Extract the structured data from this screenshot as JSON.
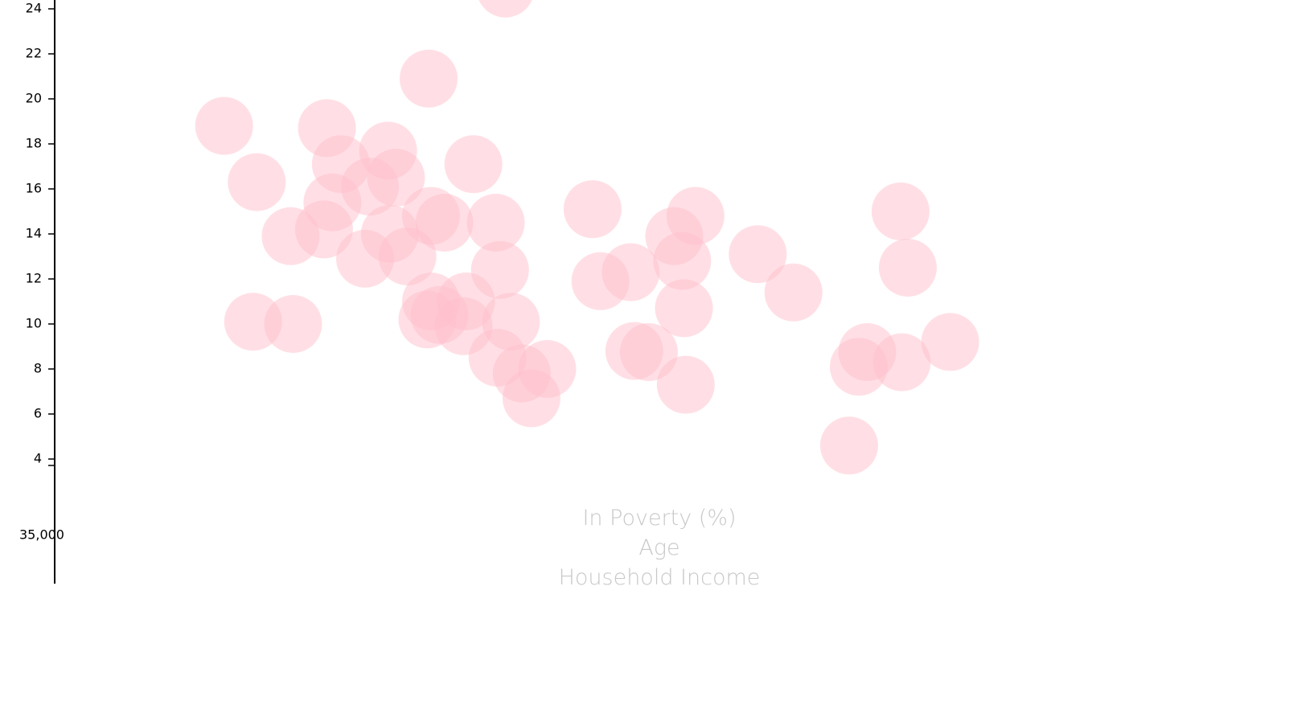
{
  "chart_data": {
    "type": "scatter",
    "color": "#ffc0cb",
    "opacity": 0.5,
    "x_axis_labels": [
      "In Poverty (%)",
      "Age",
      "Household Income"
    ],
    "ylim": [
      4,
      24
    ],
    "yticks": [
      4,
      6,
      8,
      10,
      12,
      14,
      16,
      18,
      20,
      22,
      24
    ],
    "y2ticks": [
      {
        "value": 35000,
        "label": "35,000"
      }
    ],
    "xlim": [
      6.2,
      26.6
    ],
    "x": [
      13.65,
      12.38,
      9.0,
      10.7,
      11.71,
      10.93,
      13.12,
      9.54,
      11.84,
      11.41,
      10.79,
      15.09,
      20.18,
      16.79,
      12.42,
      12.64,
      13.49,
      10.1,
      10.65,
      11.74,
      16.44,
      17.82,
      11.33,
      12.03,
      16.57,
      20.3,
      13.56,
      15.72,
      15.22,
      18.41,
      12.42,
      13.0,
      16.6,
      9.48,
      10.14,
      12.36,
      12.56,
      12.96,
      13.74,
      21.0,
      15.78,
      16.02,
      19.63,
      20.2,
      13.52,
      14.34,
      13.92,
      19.49,
      16.63,
      14.08,
      19.33
    ],
    "values": [
      24.9,
      20.9,
      18.8,
      18.7,
      17.7,
      17.1,
      17.1,
      16.3,
      16.5,
      16.1,
      15.4,
      15.1,
      15.0,
      14.8,
      14.8,
      14.5,
      14.5,
      13.9,
      14.2,
      14.0,
      13.9,
      13.1,
      12.9,
      13.0,
      12.8,
      12.5,
      12.4,
      12.3,
      11.9,
      11.4,
      11.0,
      11.0,
      10.7,
      10.1,
      10.0,
      10.2,
      10.4,
      9.9,
      10.1,
      9.2,
      8.8,
      8.75,
      8.75,
      8.3,
      8.5,
      8.0,
      7.8,
      8.1,
      7.3,
      6.7,
      4.6
    ]
  }
}
